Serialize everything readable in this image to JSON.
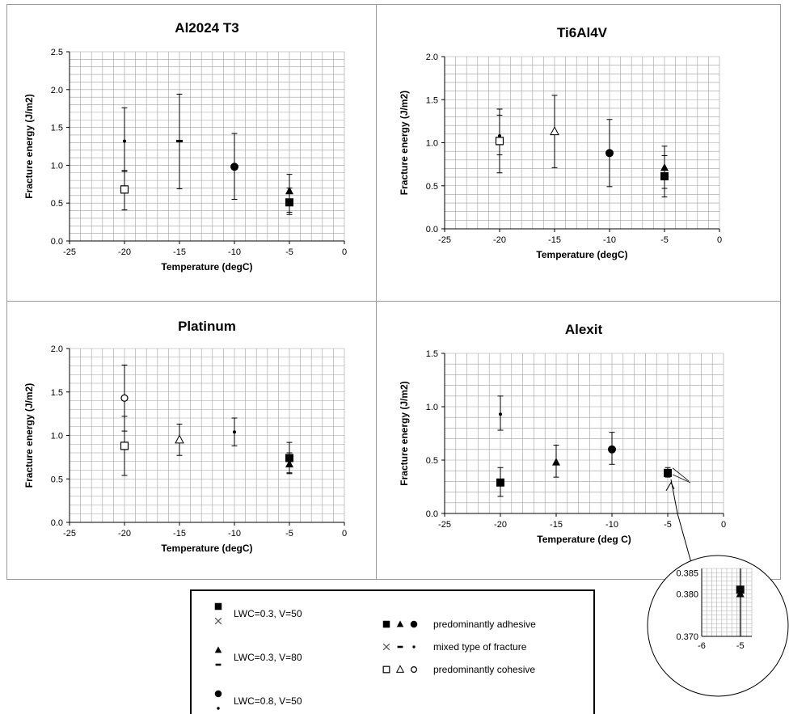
{
  "chart_data": [
    {
      "type": "scatter",
      "title": "Al2024 T3",
      "xlabel": "Temperature (degC)",
      "ylabel": "Fracture energy (J/m2)",
      "xlim": [
        -25,
        0
      ],
      "ylim": [
        0,
        2.5
      ],
      "xticks": [
        "-25",
        "-20",
        "-15",
        "-10",
        "-5",
        "0"
      ],
      "yticks": [
        "0.0",
        "0.5",
        "1.0",
        "1.5",
        "2.0",
        "2.5"
      ],
      "grid": true,
      "points": [
        {
          "x": -20,
          "y": 1.32,
          "marker": "small-dot",
          "err": [
            0.93,
            1.76
          ]
        },
        {
          "x": -20,
          "y": 0.68,
          "marker": "open-square",
          "err": [
            0.41,
            0.92
          ]
        },
        {
          "x": -15,
          "y": 1.32,
          "marker": "dash",
          "err": [
            0.69,
            1.94
          ]
        },
        {
          "x": -10,
          "y": 0.98,
          "marker": "filled-circle",
          "err": [
            0.55,
            1.42
          ]
        },
        {
          "x": -5,
          "y": 0.66,
          "marker": "filled-triangle",
          "err": [
            0.38,
            0.88
          ]
        },
        {
          "x": -5,
          "y": 0.51,
          "marker": "filled-square",
          "err": [
            0.35,
            0.7
          ]
        }
      ]
    },
    {
      "type": "scatter",
      "title": "Ti6Al4V",
      "xlabel": "Temperature (degC)",
      "ylabel": "Fracture energy (J/m2)",
      "xlim": [
        -25,
        0
      ],
      "ylim": [
        0,
        2.0
      ],
      "xticks": [
        "-25",
        "-20",
        "-15",
        "-10",
        "-5",
        "0"
      ],
      "yticks": [
        "0.0",
        "0.5",
        "1.0",
        "1.5",
        "2.0"
      ],
      "grid": true,
      "points": [
        {
          "x": -20,
          "y": 1.08,
          "marker": "small-dot",
          "err": [
            0.86,
            1.32
          ]
        },
        {
          "x": -20,
          "y": 1.02,
          "marker": "open-square",
          "err": [
            0.65,
            1.39
          ]
        },
        {
          "x": -15,
          "y": 1.13,
          "marker": "open-triangle",
          "err": [
            0.71,
            1.55
          ]
        },
        {
          "x": -10,
          "y": 0.88,
          "marker": "filled-circle",
          "err": [
            0.49,
            1.27
          ]
        },
        {
          "x": -5,
          "y": 0.71,
          "marker": "filled-triangle",
          "err": [
            0.47,
            0.96
          ]
        },
        {
          "x": -5,
          "y": 0.61,
          "marker": "filled-square",
          "err": [
            0.37,
            0.85
          ]
        }
      ]
    },
    {
      "type": "scatter",
      "title": "Platinum",
      "xlabel": "Temperature (degC)",
      "ylabel": "Fracture energy (J/m2)",
      "xlim": [
        -25,
        0
      ],
      "ylim": [
        0,
        2.0
      ],
      "xticks": [
        "-25",
        "-20",
        "-15",
        "-10",
        "-5",
        "0"
      ],
      "yticks": [
        "0.0",
        "0.5",
        "1.0",
        "1.5",
        "2.0"
      ],
      "grid": true,
      "points": [
        {
          "x": -20,
          "y": 1.43,
          "marker": "open-circle",
          "err": [
            1.05,
            1.81
          ]
        },
        {
          "x": -20,
          "y": 0.88,
          "marker": "open-square",
          "err": [
            0.54,
            1.22
          ]
        },
        {
          "x": -15,
          "y": 0.95,
          "marker": "open-triangle",
          "err": [
            0.77,
            1.13
          ]
        },
        {
          "x": -10,
          "y": 1.04,
          "marker": "small-dot",
          "err": [
            0.88,
            1.2
          ]
        },
        {
          "x": -5,
          "y": 0.74,
          "marker": "filled-square",
          "err": [
            0.57,
            0.92
          ]
        },
        {
          "x": -5,
          "y": 0.67,
          "marker": "filled-triangle",
          "err": [
            0.56,
            0.8
          ]
        }
      ]
    },
    {
      "type": "scatter",
      "title": "Alexit",
      "xlabel": "Temperature (deg C)",
      "ylabel": "Fracture energy (J/m2)",
      "xlim": [
        -25,
        0
      ],
      "ylim": [
        0,
        1.5
      ],
      "xticks": [
        "-25",
        "-20",
        "-15",
        "-10",
        "-5",
        "0"
      ],
      "yticks": [
        "0.0",
        "0.5",
        "1.0",
        "1.5"
      ],
      "grid": true,
      "points": [
        {
          "x": -20,
          "y": 0.93,
          "marker": "small-dot",
          "err": [
            0.78,
            1.1
          ]
        },
        {
          "x": -20,
          "y": 0.29,
          "marker": "filled-square",
          "err": [
            0.16,
            0.43
          ]
        },
        {
          "x": -15,
          "y": 0.48,
          "marker": "filled-triangle",
          "err": [
            0.34,
            0.64
          ]
        },
        {
          "x": -10,
          "y": 0.6,
          "marker": "filled-circle",
          "err": [
            0.46,
            0.76
          ]
        },
        {
          "x": -5,
          "y": 0.38,
          "marker": "filled-square",
          "err": [
            0.34,
            0.43
          ]
        }
      ],
      "inset": {
        "xlim": [
          -6,
          -4.7
        ],
        "ylim": [
          0.37,
          0.386
        ],
        "xticks": [
          "-6",
          "-5"
        ],
        "yticks": [
          "0.370",
          "0.380",
          "0.385"
        ],
        "points": [
          {
            "x": -5,
            "y": 0.381,
            "marker": "filled-square"
          },
          {
            "x": -5,
            "y": 0.38,
            "marker": "filled-triangle"
          }
        ]
      }
    }
  ],
  "legend": {
    "conditions": [
      {
        "label": "LWC=0.3, V=50",
        "markers": [
          "filled-square",
          "cross"
        ]
      },
      {
        "label": "LWC=0.3, V=80",
        "markers": [
          "filled-triangle",
          "dash"
        ]
      },
      {
        "label": "LWC=0.8, V=50",
        "markers": [
          "filled-circle",
          "small-dot"
        ]
      }
    ],
    "fracture_types": [
      {
        "label": "predominantly adhesive",
        "markers": [
          "filled-square",
          "filled-triangle",
          "filled-circle"
        ]
      },
      {
        "label": "mixed type of fracture",
        "markers": [
          "cross",
          "dash",
          "small-dot"
        ]
      },
      {
        "label": "predominantly cohesive",
        "markers": [
          "open-square",
          "open-triangle",
          "open-circle"
        ]
      }
    ]
  }
}
